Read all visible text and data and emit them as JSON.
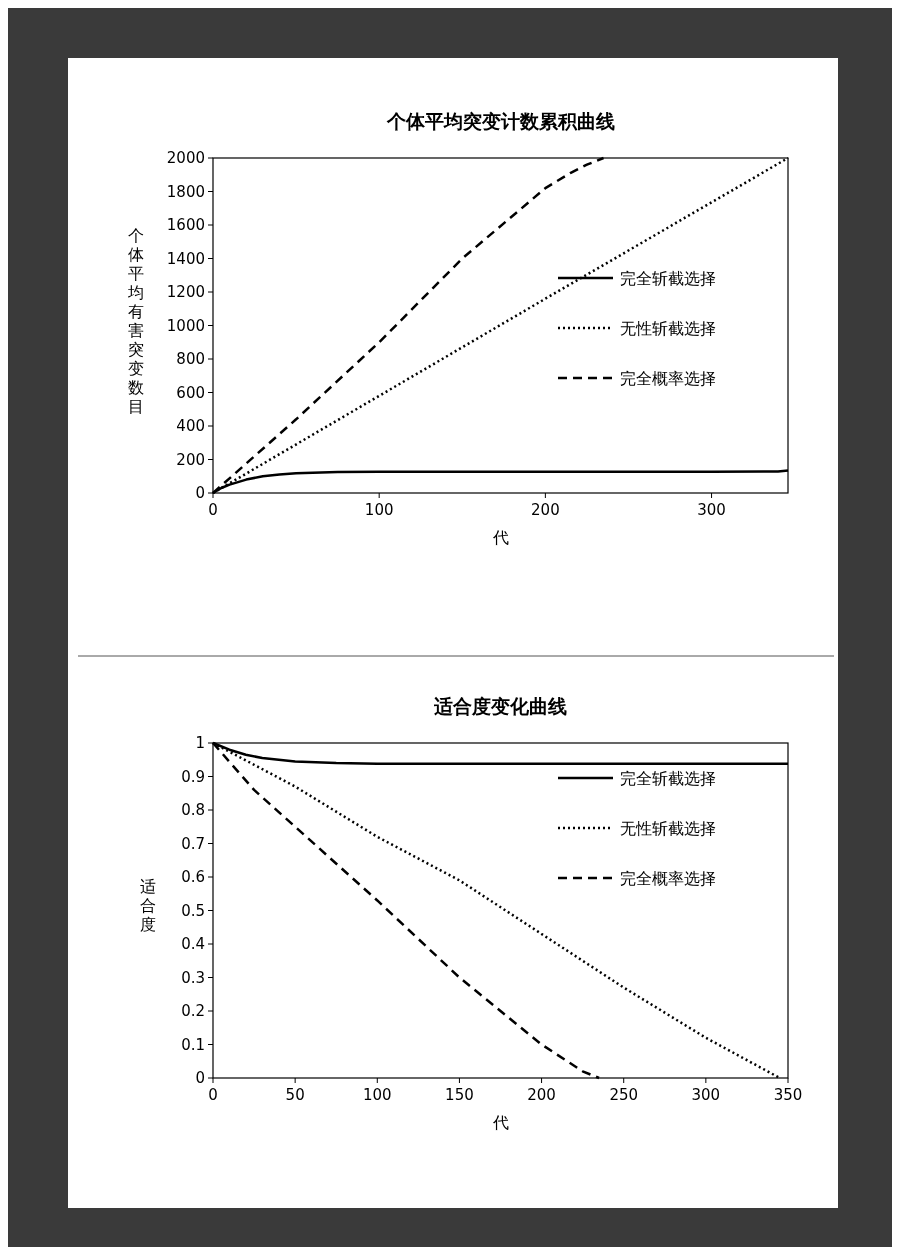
{
  "chart_data": [
    {
      "type": "line",
      "title": "个体平均突变计数累积曲线",
      "xlabel": "代",
      "ylabel": "个体平均有害突变数目",
      "xlim": [
        0,
        346
      ],
      "xticks": [
        0,
        100,
        200,
        300
      ],
      "ylim": [
        0,
        2000
      ],
      "yticks": [
        0,
        200,
        400,
        600,
        800,
        1000,
        1200,
        1400,
        1600,
        1800,
        2000
      ],
      "legend": "right",
      "grid": false,
      "series": [
        {
          "name": "完全斩截选择",
          "color": "#000000",
          "line_style": "solid",
          "x": [
            0,
            5,
            10,
            20,
            30,
            40,
            50,
            75,
            100,
            200,
            300,
            340,
            346
          ],
          "values": [
            0,
            30,
            50,
            80,
            100,
            110,
            118,
            125,
            127,
            127,
            127,
            128,
            135
          ]
        },
        {
          "name": "无性斩截选择",
          "color": "#000000",
          "line_style": "dotted",
          "x": [
            0,
            100,
            200,
            346
          ],
          "values": [
            0,
            580,
            1160,
            2000
          ]
        },
        {
          "name": "完全概率选择",
          "color": "#000000",
          "line_style": "dashed",
          "x": [
            0,
            50,
            100,
            150,
            200,
            215,
            225,
            235
          ],
          "values": [
            0,
            440,
            900,
            1400,
            1820,
            1910,
            1960,
            2000
          ]
        }
      ]
    },
    {
      "type": "line",
      "title": "适合度变化曲线",
      "xlabel": "代",
      "ylabel": "适合度",
      "xlim": [
        0,
        350
      ],
      "xticks": [
        0,
        50,
        100,
        150,
        200,
        250,
        300,
        350
      ],
      "ylim": [
        0,
        1
      ],
      "yticks": [
        0,
        0.1,
        0.2,
        0.3,
        0.4,
        0.5,
        0.6,
        0.7,
        0.8,
        0.9,
        1
      ],
      "legend": "top right",
      "grid": false,
      "series": [
        {
          "name": "完全斩截选择",
          "color": "#000000",
          "line_style": "solid",
          "x": [
            0,
            10,
            20,
            30,
            50,
            75,
            100,
            200,
            350
          ],
          "values": [
            1,
            0.98,
            0.965,
            0.955,
            0.945,
            0.94,
            0.938,
            0.938,
            0.938
          ]
        },
        {
          "name": "无性斩截选择",
          "color": "#000000",
          "line_style": "dotted",
          "x": [
            0,
            50,
            100,
            150,
            200,
            250,
            300,
            345
          ],
          "values": [
            1,
            0.87,
            0.72,
            0.59,
            0.43,
            0.27,
            0.12,
            0
          ]
        },
        {
          "name": "完全概率选择",
          "color": "#000000",
          "line_style": "dashed",
          "x": [
            0,
            25,
            50,
            100,
            150,
            200,
            225,
            235
          ],
          "values": [
            1,
            0.86,
            0.75,
            0.53,
            0.3,
            0.1,
            0.02,
            0
          ]
        }
      ]
    }
  ]
}
